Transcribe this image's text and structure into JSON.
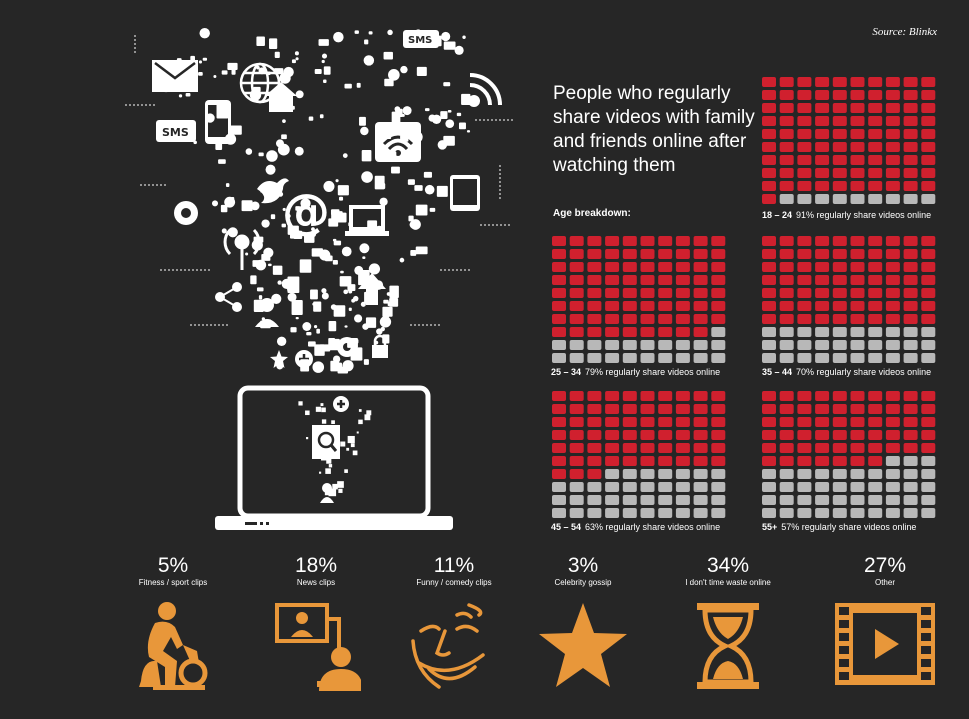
{
  "source": "Source: Blinkx",
  "headline": "People who regularly share videos with family and friends online after watching them",
  "age_breakdown_label": "Age breakdown:",
  "colors": {
    "background": "#262626",
    "share": "#d0202e",
    "noshare": "#b8b8b8",
    "accent": "#e8973a",
    "white": "#ffffff"
  },
  "chart_data": [
    {
      "type": "waffle",
      "title": "People who regularly share videos with family and friends online after watching them",
      "subtitle": "Age breakdown:",
      "categories": [
        "18 – 24",
        "25 – 34",
        "35 – 44",
        "45 – 54",
        "55+"
      ],
      "series": [
        {
          "values": [
            91,
            79,
            70,
            63,
            57
          ]
        }
      ],
      "captions": [
        "91% regularly share videos online",
        "79% regularly share videos online",
        "70% regularly share videos online",
        "63% regularly share videos online",
        "57% regularly share videos online"
      ]
    },
    {
      "type": "bar",
      "categories": [
        "Fitness / sport clips",
        "News clips",
        "Funny / comedy clips",
        "Celebrity gossip",
        "I don't time waste online",
        "Other"
      ],
      "values": [
        5,
        18,
        11,
        3,
        34,
        27
      ],
      "labels": [
        "5%",
        "18%",
        "11%",
        "3%",
        "34%",
        "27%"
      ],
      "icons": [
        "cyclist-icon",
        "news-presenter-icon",
        "smiling-face-icon",
        "star-icon",
        "hourglass-icon",
        "film-play-icon"
      ]
    }
  ]
}
